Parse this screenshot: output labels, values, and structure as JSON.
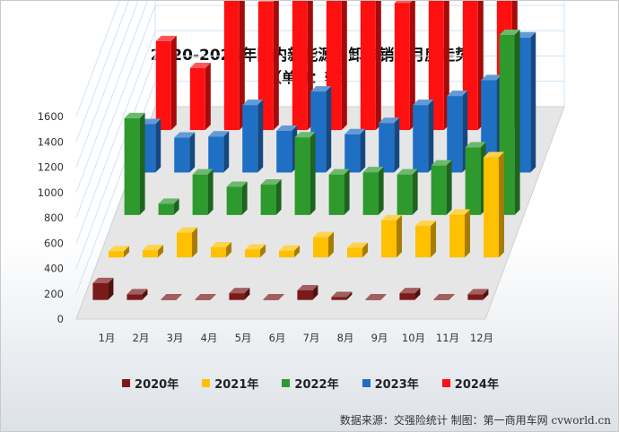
{
  "chart_data": {
    "type": "bar",
    "title": "2020-2024年国内新能源自卸车销量月度走势",
    "subtitle": "（单位：辆）",
    "categories": [
      "1月",
      "2月",
      "3月",
      "4月",
      "5月",
      "6月",
      "7月",
      "8月",
      "9月",
      "10月",
      "11月",
      "12月"
    ],
    "series": [
      {
        "name": "2020年",
        "color": "#7b1a1a",
        "values": [
          150,
          50,
          5,
          5,
          60,
          5,
          85,
          25,
          5,
          60,
          5,
          50
        ]
      },
      {
        "name": "2021年",
        "color": "#ffc000",
        "values": [
          55,
          65,
          220,
          90,
          70,
          60,
          180,
          85,
          330,
          280,
          380,
          890
        ]
      },
      {
        "name": "2022年",
        "color": "#2e9a2e",
        "values": [
          860,
          100,
          360,
          250,
          270,
          690,
          360,
          380,
          360,
          440,
          600,
          1600
        ]
      },
      {
        "name": "2023年",
        "color": "#1f6fc5",
        "values": [
          430,
          310,
          320,
          600,
          370,
          720,
          340,
          440,
          600,
          680,
          820,
          1200
        ]
      },
      {
        "name": "2024年",
        "color": "#ff1010",
        "values": [
          790,
          550,
          1680,
          1140,
          1350,
          1840,
          1590,
          1130,
          1380,
          1340,
          1510,
          0
        ]
      }
    ],
    "y_ticks": [
      "0",
      "200",
      "400",
      "600",
      "800",
      "1000",
      "1200",
      "1400",
      "1600"
    ],
    "ylim": [
      0,
      1800
    ],
    "legend_position": "bottom",
    "grid": true
  },
  "source_note": "数据来源：交强险统计  制图：第一商用车网 cvworld.cn"
}
